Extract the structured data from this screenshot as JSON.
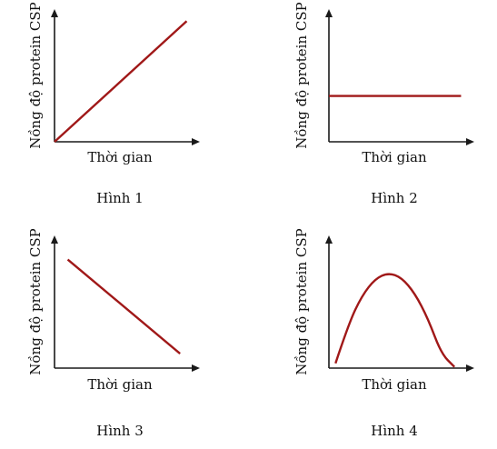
{
  "chart_data": [
    {
      "type": "line",
      "caption": "Hình 1",
      "xlabel": "Thời gian",
      "ylabel": "Nồng độ protein CSP",
      "shape": "increasing-linear",
      "x": [
        0,
        1
      ],
      "y": [
        0,
        1
      ],
      "xlim": [
        0,
        1.1
      ],
      "ylim": [
        0,
        1.1
      ],
      "color": "#a01818"
    },
    {
      "type": "line",
      "caption": "Hình 2",
      "xlabel": "Thời gian",
      "ylabel": "Nồng độ protein CSP",
      "shape": "constant",
      "x": [
        0,
        1
      ],
      "y": [
        0.38,
        0.38
      ],
      "xlim": [
        0,
        1.1
      ],
      "ylim": [
        0,
        1.1
      ],
      "color": "#a01818"
    },
    {
      "type": "line",
      "caption": "Hình 3",
      "xlabel": "Thời gian",
      "ylabel": "Nồng độ protein CSP",
      "shape": "decreasing-linear",
      "x": [
        0.1,
        0.95
      ],
      "y": [
        0.9,
        0.12
      ],
      "xlim": [
        0,
        1.1
      ],
      "ylim": [
        0,
        1.1
      ],
      "color": "#a01818"
    },
    {
      "type": "line",
      "caption": "Hình 4",
      "xlabel": "Thời gian",
      "ylabel": "Nồng độ protein CSP",
      "shape": "parabola",
      "x": [
        0.05,
        0.15,
        0.25,
        0.35,
        0.45,
        0.55,
        0.65,
        0.75,
        0.85,
        0.95
      ],
      "y": [
        0.04,
        0.37,
        0.6,
        0.74,
        0.79,
        0.75,
        0.62,
        0.41,
        0.12,
        0.01
      ],
      "xlim": [
        0,
        1.1
      ],
      "ylim": [
        0,
        1.1
      ],
      "color": "#a01818"
    }
  ]
}
